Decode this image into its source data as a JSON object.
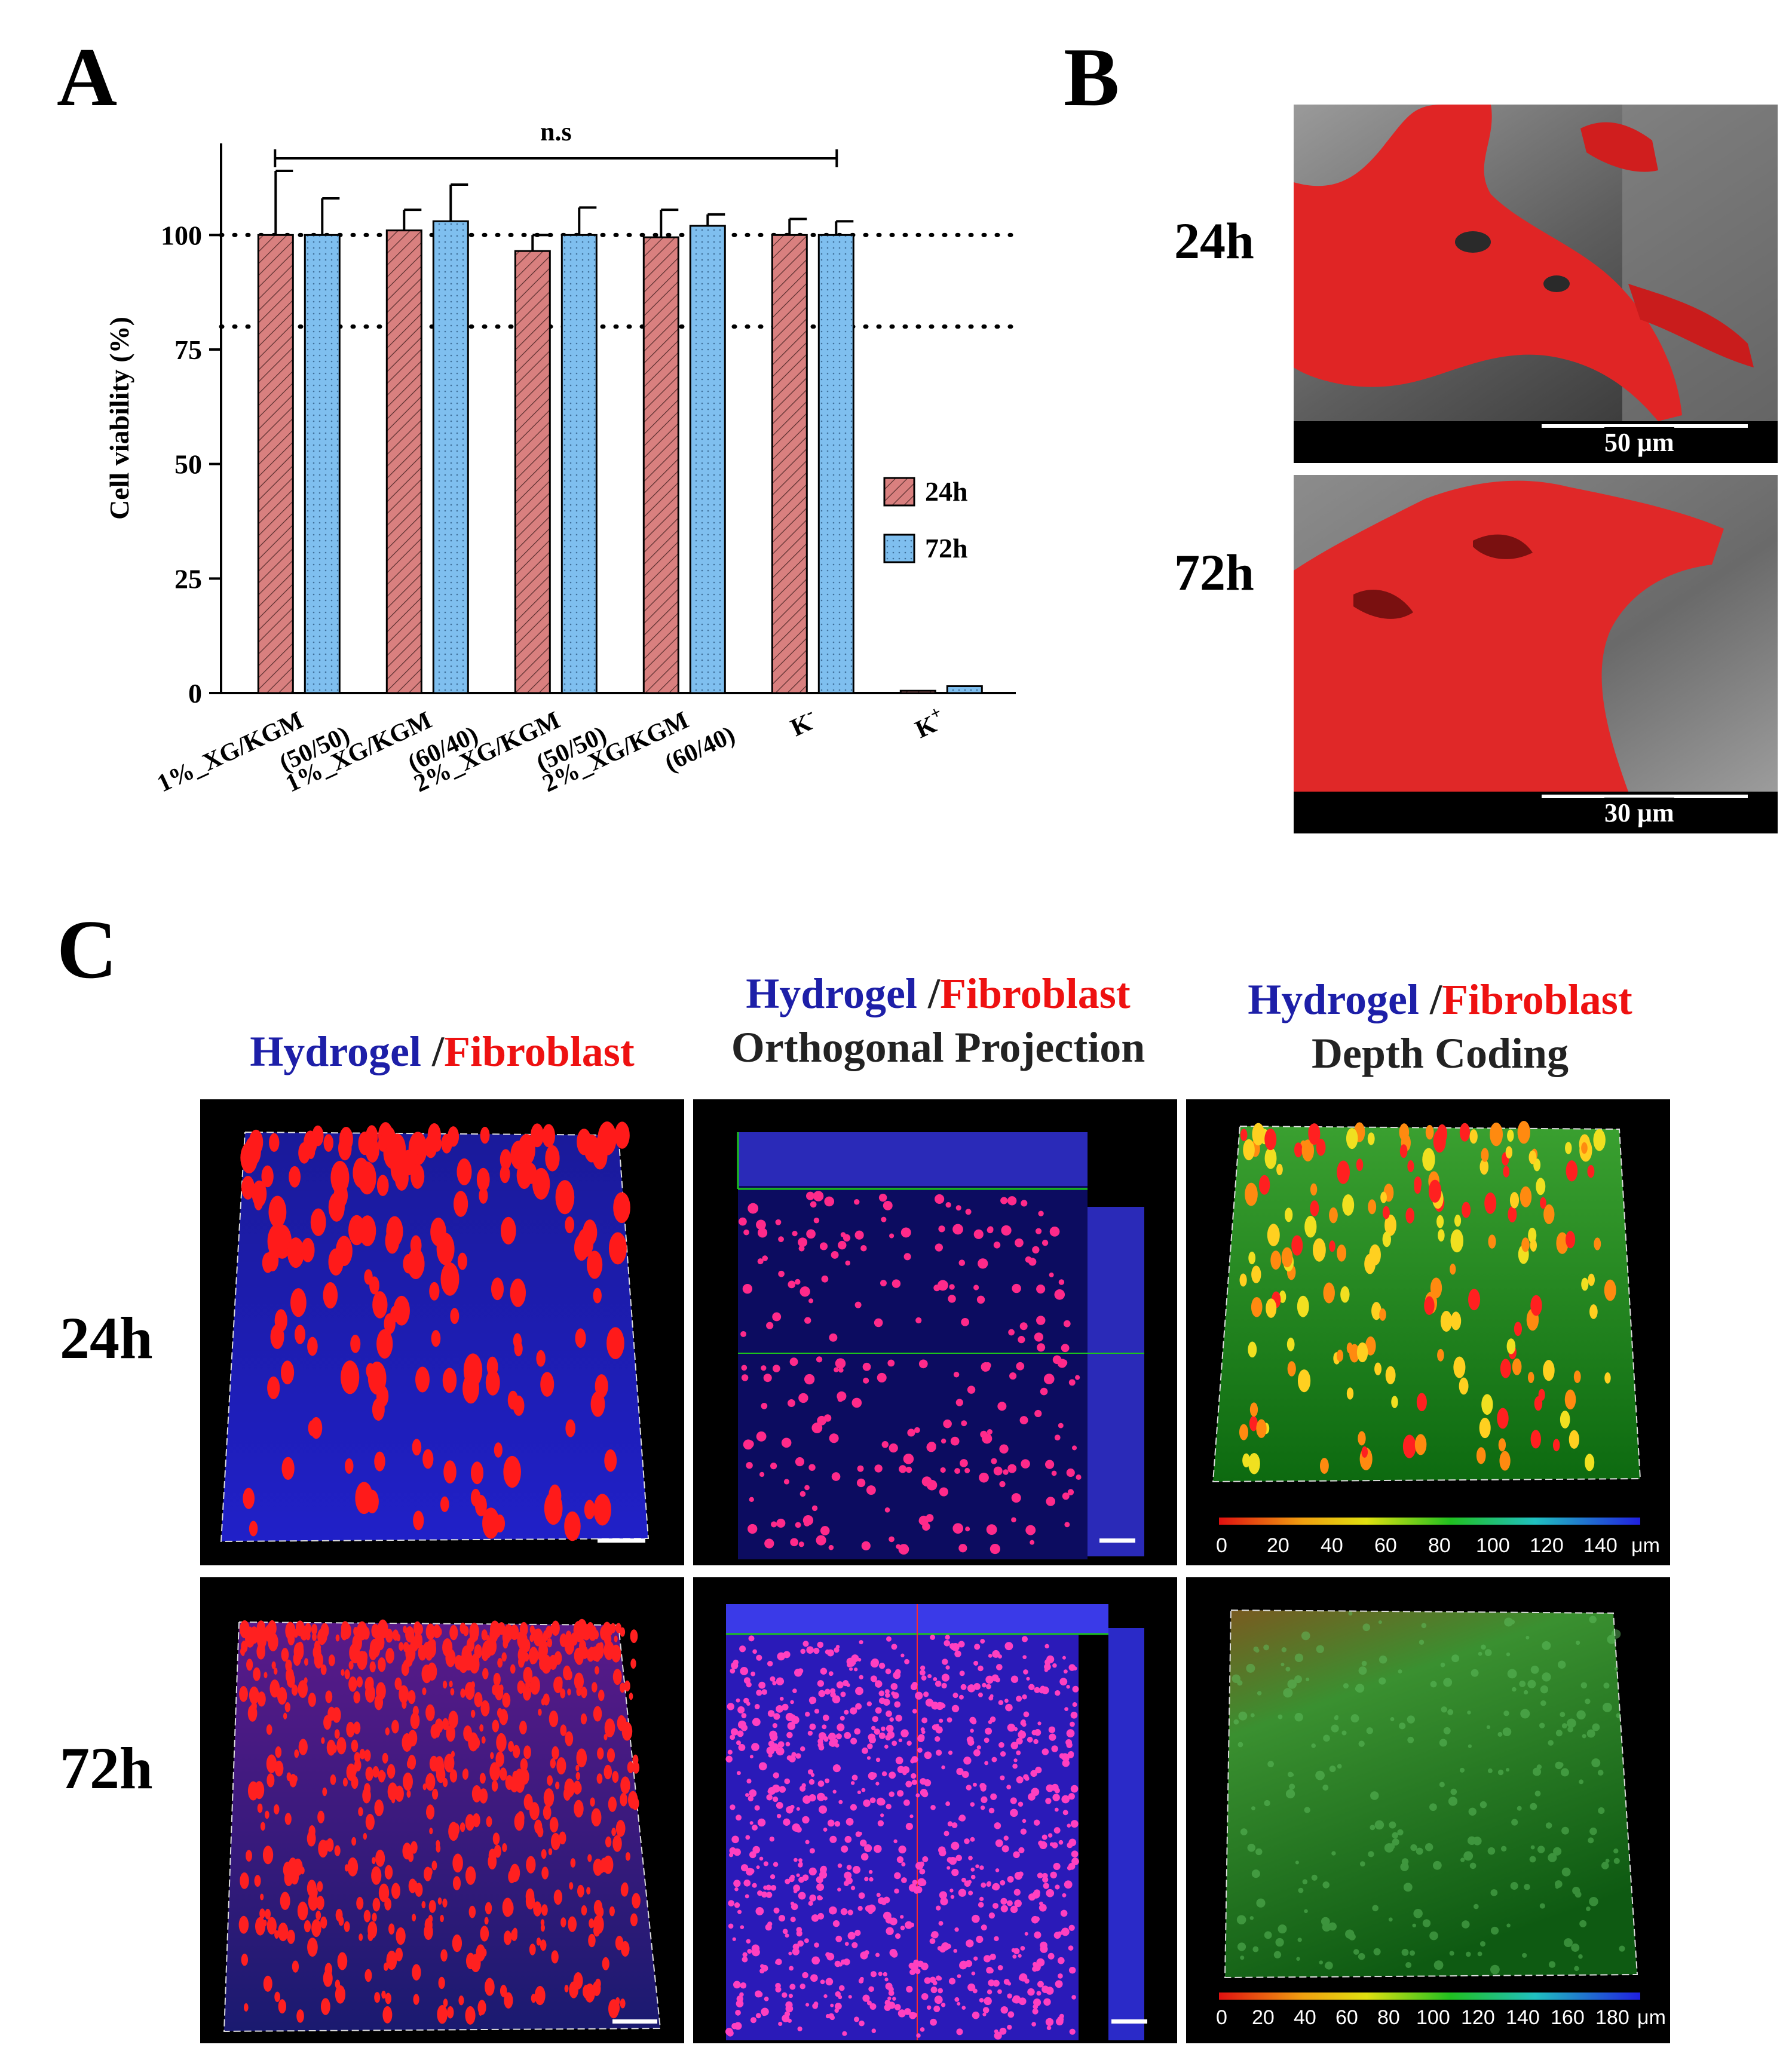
{
  "panels": {
    "A": {
      "letter": "A"
    },
    "B": {
      "letter": "B",
      "rows": [
        {
          "time": "24h",
          "scale": "50 μm"
        },
        {
          "time": "72h",
          "scale": "30 μm"
        }
      ]
    },
    "C": {
      "letter": "C",
      "col1": {
        "blue": "Hydrogel",
        "slash": " /",
        "red": "Fibroblast"
      },
      "col2": {
        "blue": "Hydrogel",
        "slash": " /",
        "red": "Fibroblast",
        "sub": "Orthogonal Projection"
      },
      "col3": {
        "blue": "Hydrogel",
        "slash": " /",
        "red": "Fibroblast",
        "sub": "Depth Coding"
      },
      "rows": [
        "24h",
        "72h"
      ],
      "colorbar_24h": {
        "ticks": [
          "0",
          "20",
          "40",
          "60",
          "80",
          "100",
          "120",
          "140"
        ],
        "unit": "μm"
      },
      "colorbar_72h": {
        "ticks": [
          "0",
          "20",
          "40",
          "60",
          "80",
          "100",
          "120",
          "140",
          "160",
          "180"
        ],
        "unit": "μm"
      }
    }
  },
  "chart_data": {
    "type": "bar",
    "ylabel": "Cell viability (%)",
    "xlabel": "",
    "ylim": [
      0,
      120
    ],
    "yticks": [
      0,
      25,
      50,
      75,
      100
    ],
    "categories": [
      "1%_XG/KGM (50/50)",
      "1%_XG/KGM (60/40)",
      "2%_XG/KGM (50/50)",
      "2%_XG/KGM (60/40)",
      "K-",
      "K+"
    ],
    "category_lines": [
      [
        "1%_XG/KGM",
        "(50/50)"
      ],
      [
        "1%_XG/KGM",
        "(60/40)"
      ],
      [
        "2%_XG/KGM",
        "(50/50)"
      ],
      [
        "2%_XG/KGM",
        "(60/40)"
      ],
      [
        "K",
        "-"
      ],
      [
        "K",
        "+"
      ]
    ],
    "series": [
      {
        "name": "24h",
        "values": [
          100,
          101,
          96.5,
          99.5,
          100,
          0.5
        ],
        "errors": [
          14,
          4.5,
          3.5,
          6,
          3.5,
          0.2
        ],
        "color": "#d9807f",
        "pattern": "hatch"
      },
      {
        "name": "72h",
        "values": [
          100,
          103,
          100,
          102,
          100,
          1.5
        ],
        "errors": [
          8,
          8,
          6,
          2.5,
          3,
          0.3
        ],
        "color": "#7fbfef",
        "pattern": "dots"
      }
    ],
    "reference_lines": [
      100,
      80
    ],
    "annotation": {
      "text": "n.s",
      "from_category": 0,
      "to_category": 4
    },
    "legend_position": "right"
  }
}
